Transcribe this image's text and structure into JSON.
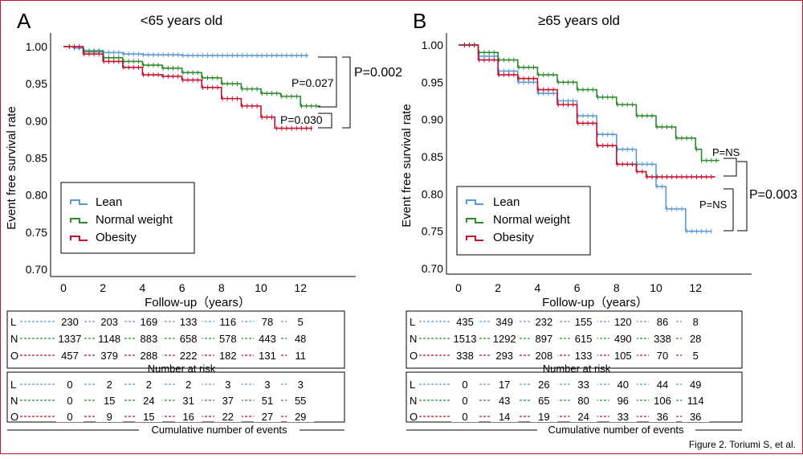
{
  "footer": "Figure 2. Toriumi S, et al.",
  "colors": {
    "lean": "#5b9bd5",
    "normal": "#2e8b2e",
    "obesity": "#c8102e",
    "frame": "#c8102e"
  },
  "chart_data": [
    {
      "type": "line",
      "panel": "A",
      "title": "<65 years old",
      "xlabel": "Follow-up（years）",
      "ylabel": "Event free survival rate",
      "xlim": [
        0,
        14
      ],
      "ylim": [
        0.7,
        1.0
      ],
      "x_ticks": [
        "0",
        "2",
        "4",
        "6",
        "8",
        "10",
        "12"
      ],
      "y_ticks": [
        "1.00",
        "0.95",
        "0.90",
        "0.85",
        "0.80",
        "0.75",
        "0.70"
      ],
      "legend_position": "bottom-left",
      "series": [
        {
          "name": "Lean",
          "color": "#5b9bd5",
          "points": [
            [
              0,
              1.0
            ],
            [
              0.5,
              0.998
            ],
            [
              1,
              0.995
            ],
            [
              2,
              0.992
            ],
            [
              3,
              0.99
            ],
            [
              4,
              0.989
            ],
            [
              6,
              0.988
            ],
            [
              8,
              0.988
            ],
            [
              10,
              0.988
            ],
            [
              12.4,
              0.988
            ]
          ]
        },
        {
          "name": "Normal weight",
          "color": "#2e8b2e",
          "points": [
            [
              0,
              1.0
            ],
            [
              1,
              0.993
            ],
            [
              2,
              0.985
            ],
            [
              3,
              0.98
            ],
            [
              4,
              0.975
            ],
            [
              5,
              0.971
            ],
            [
              6,
              0.965
            ],
            [
              7,
              0.958
            ],
            [
              8,
              0.95
            ],
            [
              9,
              0.943
            ],
            [
              10,
              0.937
            ],
            [
              11,
              0.933
            ],
            [
              12,
              0.92
            ],
            [
              13,
              0.92
            ]
          ]
        },
        {
          "name": "Obesity",
          "color": "#c8102e",
          "points": [
            [
              0,
              1.0
            ],
            [
              1,
              0.99
            ],
            [
              2,
              0.98
            ],
            [
              3,
              0.972
            ],
            [
              4,
              0.962
            ],
            [
              5,
              0.96
            ],
            [
              6,
              0.955
            ],
            [
              7,
              0.945
            ],
            [
              8,
              0.93
            ],
            [
              9,
              0.92
            ],
            [
              10,
              0.905
            ],
            [
              10.7,
              0.89
            ],
            [
              12.6,
              0.89
            ]
          ]
        }
      ],
      "annotations": [
        "P=0.027",
        "P=0.030",
        "P=0.002"
      ],
      "risk_table": {
        "title": "Number at risk",
        "rows": [
          {
            "label": "L",
            "values": [
              "230",
              "203",
              "169",
              "133",
              "116",
              "78",
              "5"
            ]
          },
          {
            "label": "N",
            "values": [
              "1337",
              "1148",
              "883",
              "658",
              "578",
              "443",
              "48"
            ]
          },
          {
            "label": "O",
            "values": [
              "457",
              "379",
              "288",
              "222",
              "182",
              "131",
              "11"
            ]
          }
        ]
      },
      "events_table": {
        "title": "Cumulative number of events",
        "rows": [
          {
            "label": "L",
            "values": [
              "0",
              "2",
              "2",
              "2",
              "3",
              "3",
              "3"
            ]
          },
          {
            "label": "N",
            "values": [
              "0",
              "15",
              "24",
              "31",
              "37",
              "51",
              "55"
            ]
          },
          {
            "label": "O",
            "values": [
              "0",
              "9",
              "15",
              "16",
              "22",
              "27",
              "29"
            ]
          }
        ]
      }
    },
    {
      "type": "line",
      "panel": "B",
      "title": "≥65 years old",
      "xlabel": "Follow-up（years）",
      "ylabel": "Event free survival rate",
      "xlim": [
        0,
        14
      ],
      "ylim": [
        0.7,
        1.0
      ],
      "x_ticks": [
        "0",
        "2",
        "4",
        "6",
        "8",
        "10",
        "12"
      ],
      "y_ticks": [
        "1.00",
        "0.95",
        "0.90",
        "0.85",
        "0.80",
        "0.75",
        "0.70"
      ],
      "legend_position": "bottom-left",
      "series": [
        {
          "name": "Lean",
          "color": "#5b9bd5",
          "points": [
            [
              0,
              1.0
            ],
            [
              1,
              0.985
            ],
            [
              2,
              0.965
            ],
            [
              3,
              0.95
            ],
            [
              4,
              0.935
            ],
            [
              5,
              0.925
            ],
            [
              6,
              0.905
            ],
            [
              7,
              0.88
            ],
            [
              8,
              0.86
            ],
            [
              9,
              0.84
            ],
            [
              10,
              0.81
            ],
            [
              10.5,
              0.78
            ],
            [
              11.5,
              0.75
            ],
            [
              12.8,
              0.75
            ]
          ]
        },
        {
          "name": "Normal weight",
          "color": "#2e8b2e",
          "points": [
            [
              0,
              1.0
            ],
            [
              1,
              0.99
            ],
            [
              2,
              0.98
            ],
            [
              3,
              0.97
            ],
            [
              4,
              0.96
            ],
            [
              5,
              0.95
            ],
            [
              6,
              0.94
            ],
            [
              7,
              0.93
            ],
            [
              8,
              0.92
            ],
            [
              9,
              0.905
            ],
            [
              10,
              0.89
            ],
            [
              11,
              0.875
            ],
            [
              12,
              0.86
            ],
            [
              12.3,
              0.845
            ],
            [
              13.2,
              0.845
            ]
          ]
        },
        {
          "name": "Obesity",
          "color": "#c8102e",
          "points": [
            [
              0,
              1.0
            ],
            [
              1,
              0.98
            ],
            [
              2,
              0.96
            ],
            [
              3,
              0.955
            ],
            [
              4,
              0.94
            ],
            [
              5,
              0.92
            ],
            [
              6,
              0.895
            ],
            [
              7,
              0.865
            ],
            [
              8,
              0.84
            ],
            [
              9,
              0.83
            ],
            [
              9.5,
              0.823
            ],
            [
              10,
              0.823
            ],
            [
              13,
              0.823
            ]
          ]
        }
      ],
      "annotations": [
        "P=NS",
        "P=NS",
        "P=0.003"
      ],
      "risk_table": {
        "title": "Number at risk",
        "rows": [
          {
            "label": "L",
            "values": [
              "435",
              "349",
              "232",
              "155",
              "120",
              "86",
              "8"
            ]
          },
          {
            "label": "N",
            "values": [
              "1513",
              "1292",
              "897",
              "615",
              "490",
              "338",
              "28"
            ]
          },
          {
            "label": "O",
            "values": [
              "338",
              "293",
              "208",
              "133",
              "105",
              "70",
              "5"
            ]
          }
        ]
      },
      "events_table": {
        "title": "Cumulative number of events",
        "rows": [
          {
            "label": "L",
            "values": [
              "0",
              "17",
              "26",
              "33",
              "40",
              "44",
              "49"
            ]
          },
          {
            "label": "N",
            "values": [
              "0",
              "43",
              "65",
              "80",
              "96",
              "106",
              "114"
            ]
          },
          {
            "label": "O",
            "values": [
              "0",
              "14",
              "19",
              "24",
              "33",
              "36",
              "36"
            ]
          }
        ]
      }
    }
  ]
}
